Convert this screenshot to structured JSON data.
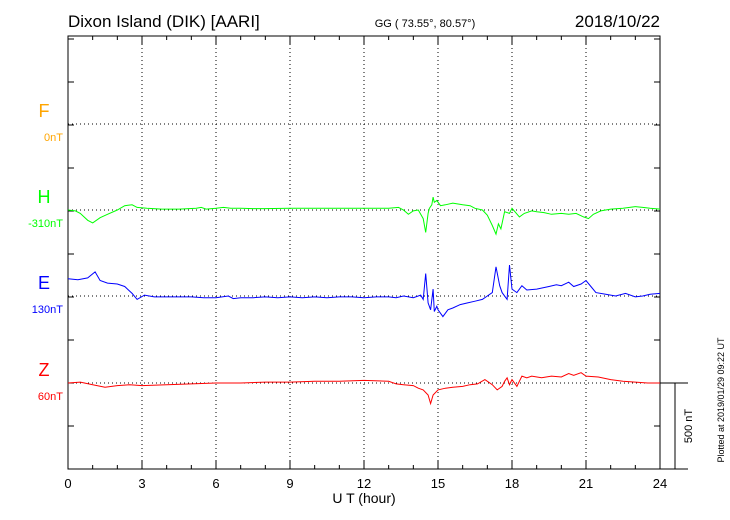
{
  "header": {
    "station": "Dixon Island (DIK)  [AARI]",
    "coords": "GG ( 73.55°,  80.57°)",
    "date": "2018/10/22"
  },
  "footer": {
    "plotted": "Plotted at 2019/01/29 09:22 UT"
  },
  "chart_data": {
    "type": "line",
    "xlabel": "U T (hour)",
    "xlim": [
      0,
      24
    ],
    "xticks": [
      0,
      3,
      6,
      9,
      12,
      15,
      18,
      21,
      24
    ],
    "scale_bar": "500 nT",
    "series": [
      {
        "name": "F",
        "baseline": "0nT",
        "color": "#ffa500",
        "points": []
      },
      {
        "name": "H",
        "baseline": "-310nT",
        "color": "#00ff00",
        "points": [
          [
            0,
            0
          ],
          [
            0.3,
            -5
          ],
          [
            0.5,
            -20
          ],
          [
            0.8,
            -60
          ],
          [
            1.0,
            -75
          ],
          [
            1.3,
            -45
          ],
          [
            1.6,
            -25
          ],
          [
            2.0,
            0
          ],
          [
            2.3,
            25
          ],
          [
            2.6,
            30
          ],
          [
            2.8,
            15
          ],
          [
            3.2,
            10
          ],
          [
            3.8,
            5
          ],
          [
            4.5,
            5
          ],
          [
            5.2,
            10
          ],
          [
            5.4,
            15
          ],
          [
            5.6,
            5
          ],
          [
            6.0,
            10
          ],
          [
            6.3,
            15
          ],
          [
            6.6,
            10
          ],
          [
            7.0,
            10
          ],
          [
            7.5,
            8
          ],
          [
            8.0,
            8
          ],
          [
            9.0,
            10
          ],
          [
            10.0,
            10
          ],
          [
            11.0,
            10
          ],
          [
            12.0,
            10
          ],
          [
            13.0,
            10
          ],
          [
            13.4,
            15
          ],
          [
            13.6,
            0
          ],
          [
            13.8,
            -25
          ],
          [
            14.0,
            -5
          ],
          [
            14.2,
            0
          ],
          [
            14.4,
            -50
          ],
          [
            14.5,
            -130
          ],
          [
            14.6,
            -20
          ],
          [
            14.65,
            10
          ],
          [
            14.75,
            30
          ],
          [
            14.8,
            75
          ],
          [
            14.85,
            45
          ],
          [
            14.95,
            55
          ],
          [
            15.1,
            25
          ],
          [
            15.3,
            30
          ],
          [
            15.6,
            40
          ],
          [
            16.0,
            30
          ],
          [
            16.3,
            25
          ],
          [
            16.5,
            10
          ],
          [
            16.8,
            0
          ],
          [
            17.0,
            -30
          ],
          [
            17.2,
            -90
          ],
          [
            17.35,
            -140
          ],
          [
            17.45,
            -80
          ],
          [
            17.55,
            -110
          ],
          [
            17.7,
            -10
          ],
          [
            17.9,
            -20
          ],
          [
            18.0,
            10
          ],
          [
            18.3,
            -40
          ],
          [
            18.5,
            -20
          ],
          [
            18.8,
            -5
          ],
          [
            19.0,
            -10
          ],
          [
            19.3,
            -15
          ],
          [
            19.6,
            -25
          ],
          [
            20.0,
            -20
          ],
          [
            20.3,
            -25
          ],
          [
            20.6,
            -20
          ],
          [
            20.9,
            -40
          ],
          [
            21.1,
            -50
          ],
          [
            21.3,
            -25
          ],
          [
            21.6,
            -5
          ],
          [
            22.0,
            5
          ],
          [
            22.5,
            10
          ],
          [
            23.0,
            20
          ],
          [
            23.3,
            15
          ],
          [
            23.6,
            10
          ],
          [
            24.0,
            5
          ]
        ]
      },
      {
        "name": "E",
        "baseline": "130nT",
        "color": "#0000ff",
        "points": [
          [
            0,
            100
          ],
          [
            0.4,
            95
          ],
          [
            0.8,
            105
          ],
          [
            1.1,
            140
          ],
          [
            1.3,
            90
          ],
          [
            1.6,
            75
          ],
          [
            2.0,
            70
          ],
          [
            2.3,
            55
          ],
          [
            2.6,
            15
          ],
          [
            2.8,
            -20
          ],
          [
            3.1,
            5
          ],
          [
            3.5,
            -5
          ],
          [
            4.0,
            -5
          ],
          [
            4.5,
            -5
          ],
          [
            5.0,
            -5
          ],
          [
            5.5,
            -10
          ],
          [
            6.0,
            -10
          ],
          [
            6.5,
            0
          ],
          [
            6.7,
            -15
          ],
          [
            7.0,
            -10
          ],
          [
            7.5,
            -10
          ],
          [
            8.0,
            -5
          ],
          [
            8.5,
            -10
          ],
          [
            9.0,
            -5
          ],
          [
            9.5,
            -10
          ],
          [
            10.0,
            -5
          ],
          [
            10.5,
            -10
          ],
          [
            11.0,
            -5
          ],
          [
            11.5,
            -5
          ],
          [
            12.0,
            -10
          ],
          [
            12.5,
            -5
          ],
          [
            13.0,
            -5
          ],
          [
            13.3,
            -10
          ],
          [
            13.6,
            0
          ],
          [
            14.0,
            -10
          ],
          [
            14.3,
            5
          ],
          [
            14.4,
            -20
          ],
          [
            14.5,
            130
          ],
          [
            14.6,
            -40
          ],
          [
            14.7,
            -80
          ],
          [
            14.8,
            40
          ],
          [
            14.85,
            -90
          ],
          [
            14.95,
            -60
          ],
          [
            15.0,
            -80
          ],
          [
            15.2,
            -120
          ],
          [
            15.4,
            -80
          ],
          [
            15.6,
            -70
          ],
          [
            15.9,
            -50
          ],
          [
            16.2,
            -40
          ],
          [
            16.5,
            -30
          ],
          [
            16.8,
            -20
          ],
          [
            17.0,
            0
          ],
          [
            17.2,
            20
          ],
          [
            17.35,
            170
          ],
          [
            17.5,
            60
          ],
          [
            17.6,
            20
          ],
          [
            17.8,
            -20
          ],
          [
            17.9,
            180
          ],
          [
            18.0,
            40
          ],
          [
            18.2,
            20
          ],
          [
            18.4,
            60
          ],
          [
            18.6,
            35
          ],
          [
            19.0,
            40
          ],
          [
            19.5,
            55
          ],
          [
            19.8,
            65
          ],
          [
            20.0,
            60
          ],
          [
            20.3,
            80
          ],
          [
            20.5,
            55
          ],
          [
            20.8,
            70
          ],
          [
            21.0,
            90
          ],
          [
            21.2,
            55
          ],
          [
            21.4,
            20
          ],
          [
            21.8,
            10
          ],
          [
            22.2,
            0
          ],
          [
            22.6,
            15
          ],
          [
            23.0,
            -5
          ],
          [
            23.3,
            0
          ],
          [
            23.6,
            10
          ],
          [
            24.0,
            15
          ]
        ]
      },
      {
        "name": "Z",
        "baseline": "60nT",
        "color": "#ff0000",
        "points": [
          [
            0,
            0
          ],
          [
            0.5,
            5
          ],
          [
            1.0,
            -10
          ],
          [
            1.5,
            -25
          ],
          [
            2.0,
            -15
          ],
          [
            2.5,
            -10
          ],
          [
            3.0,
            -15
          ],
          [
            4.0,
            -10
          ],
          [
            5.0,
            -5
          ],
          [
            6.0,
            0
          ],
          [
            7.0,
            0
          ],
          [
            8.0,
            5
          ],
          [
            9.0,
            5
          ],
          [
            10.0,
            10
          ],
          [
            11.0,
            10
          ],
          [
            12.0,
            15
          ],
          [
            13.0,
            10
          ],
          [
            13.3,
            -5
          ],
          [
            13.6,
            -10
          ],
          [
            14.0,
            -15
          ],
          [
            14.2,
            -30
          ],
          [
            14.4,
            -40
          ],
          [
            14.6,
            -70
          ],
          [
            14.7,
            -120
          ],
          [
            14.8,
            -70
          ],
          [
            15.0,
            -40
          ],
          [
            15.3,
            -30
          ],
          [
            15.6,
            -25
          ],
          [
            16.0,
            -20
          ],
          [
            16.3,
            -10
          ],
          [
            16.6,
            -5
          ],
          [
            16.9,
            20
          ],
          [
            17.2,
            -10
          ],
          [
            17.4,
            -40
          ],
          [
            17.6,
            -20
          ],
          [
            17.7,
            10
          ],
          [
            17.8,
            30
          ],
          [
            17.9,
            -10
          ],
          [
            18.0,
            20
          ],
          [
            18.2,
            -20
          ],
          [
            18.4,
            40
          ],
          [
            18.6,
            30
          ],
          [
            18.8,
            40
          ],
          [
            19.2,
            30
          ],
          [
            19.6,
            40
          ],
          [
            20.0,
            35
          ],
          [
            20.3,
            55
          ],
          [
            20.5,
            45
          ],
          [
            20.8,
            60
          ],
          [
            21.0,
            40
          ],
          [
            21.5,
            35
          ],
          [
            22.0,
            20
          ],
          [
            22.5,
            10
          ],
          [
            23.0,
            5
          ],
          [
            23.5,
            0
          ],
          [
            24.0,
            0
          ]
        ]
      }
    ]
  }
}
